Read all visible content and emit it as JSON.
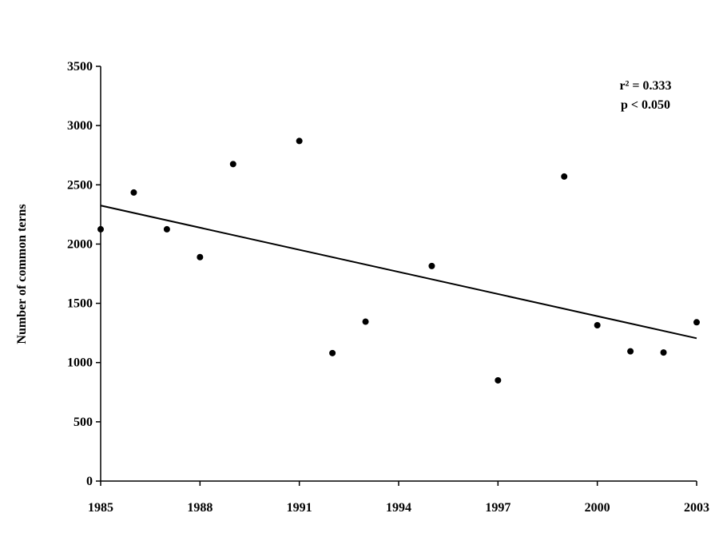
{
  "chart_data": {
    "type": "scatter",
    "ylabel": "Number of common terns",
    "xlabel": "",
    "xlim": [
      1985,
      2003
    ],
    "ylim": [
      0,
      3500
    ],
    "x_ticks": [
      "1985",
      "1988",
      "1991",
      "1994",
      "1997",
      "2000",
      "2003"
    ],
    "y_ticks": [
      "0",
      "500",
      "1000",
      "1500",
      "2000",
      "2500",
      "3000",
      "3500"
    ],
    "grid": false,
    "annotations": [
      "r² = 0.333",
      "p < 0.050"
    ],
    "series": [
      {
        "points": [
          {
            "x": 1985,
            "y": 2125
          },
          {
            "x": 1986,
            "y": 2435
          },
          {
            "x": 1987,
            "y": 2125
          },
          {
            "x": 1988,
            "y": 1890
          },
          {
            "x": 1989,
            "y": 2675
          },
          {
            "x": 1991,
            "y": 2870
          },
          {
            "x": 1992,
            "y": 1080
          },
          {
            "x": 1993,
            "y": 1345
          },
          {
            "x": 1995,
            "y": 1815
          },
          {
            "x": 1997,
            "y": 850
          },
          {
            "x": 1999,
            "y": 2570
          },
          {
            "x": 2000,
            "y": 1315
          },
          {
            "x": 2001,
            "y": 1095
          },
          {
            "x": 2002,
            "y": 1085
          },
          {
            "x": 2003,
            "y": 1340
          }
        ]
      }
    ],
    "trendline": {
      "x": [
        1985,
        2003
      ],
      "y": [
        2325,
        1205
      ]
    },
    "colors": {
      "marker": "#000000",
      "line": "#000000",
      "axis": "#000000"
    }
  }
}
